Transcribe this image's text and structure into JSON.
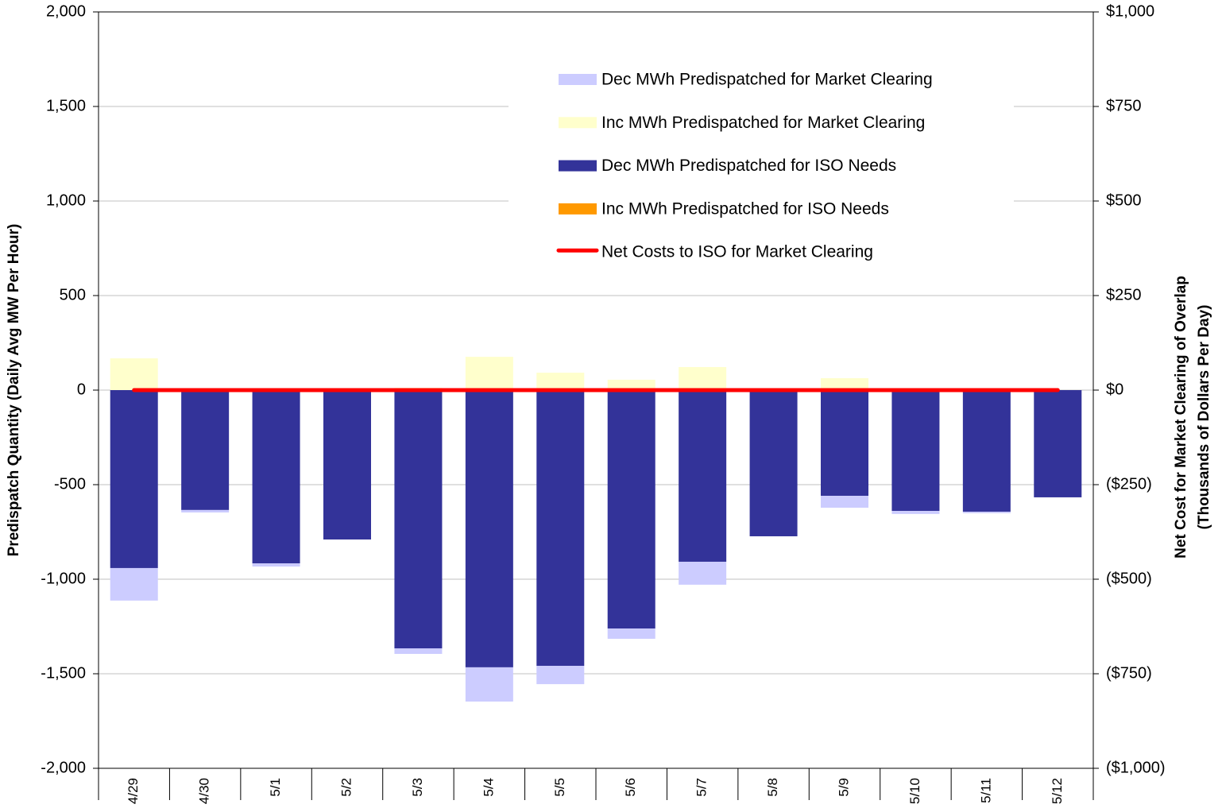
{
  "chart_data": {
    "type": "bar",
    "stacked": true,
    "y_label": "Predispatch Quantity (Daily Avg MW Per Hour)",
    "y2_label_lines": [
      "Net Cost for Market Clearing of Overlap",
      "(Thousands of Dollars Per Day)"
    ],
    "categories": [
      "4/29",
      "4/30",
      "5/1",
      "5/2",
      "5/3",
      "5/4",
      "5/5",
      "5/6",
      "5/7",
      "5/8",
      "5/9",
      "5/10",
      "5/11",
      "5/12"
    ],
    "series": [
      {
        "name": "Dec MWh Predispatched for Market Clearing",
        "color": "#ccccff",
        "values": [
          -172,
          -13,
          -17,
          0,
          -29,
          -181,
          -97,
          -54,
          -121,
          0,
          -63,
          -16,
          -8,
          0
        ]
      },
      {
        "name": "Inc MWh Predispatched for Market Clearing",
        "color": "#ffffcc",
        "values": [
          168,
          0,
          0,
          0,
          12,
          176,
          92,
          55,
          122,
          0,
          63,
          0,
          0,
          0
        ]
      },
      {
        "name": "Dec MWh Predispatched for ISO Needs",
        "color": "#333399",
        "values": [
          -941,
          -634,
          -916,
          -790,
          -1366,
          -1466,
          -1458,
          -1261,
          -908,
          -773,
          -559,
          -639,
          -643,
          -567
        ]
      },
      {
        "name": "Inc MWh Predispatched for ISO Needs",
        "color": "#ff9900",
        "values": [
          0,
          0,
          0,
          0,
          0,
          0,
          0,
          0,
          0,
          0,
          0,
          0,
          0,
          0
        ]
      },
      {
        "name": "Net Costs to ISO for Market Clearing",
        "color": "#ff0000",
        "type": "line",
        "axis": "y2",
        "values": [
          0,
          0,
          0,
          0,
          0,
          0,
          0,
          0,
          0,
          0,
          0,
          0,
          0,
          0
        ]
      }
    ],
    "ylim": [
      -2000,
      2000
    ],
    "yticks": [
      {
        "value": -2000,
        "label": "-2,000"
      },
      {
        "value": -1500,
        "label": "-1,500"
      },
      {
        "value": -1000,
        "label": "-1,000"
      },
      -500,
      0,
      500,
      {
        "value": 1000,
        "label": "1,000"
      },
      {
        "value": 1500,
        "label": "1,500"
      },
      {
        "value": 2000,
        "label": "2,000"
      }
    ],
    "y2lim": [
      -1000,
      1000
    ],
    "y2ticks": [
      {
        "value": -1000,
        "label": "($1,000)"
      },
      {
        "value": -750,
        "label": "($750)"
      },
      {
        "value": -500,
        "label": "($500)"
      },
      {
        "value": -250,
        "label": "($250)"
      },
      {
        "value": 0,
        "label": "$0"
      },
      {
        "value": 250,
        "label": "$250"
      },
      {
        "value": 500,
        "label": "$500"
      },
      {
        "value": 750,
        "label": "$750"
      },
      {
        "value": 1000,
        "label": "$1,000"
      }
    ],
    "grid": true,
    "legend": "top-right"
  }
}
